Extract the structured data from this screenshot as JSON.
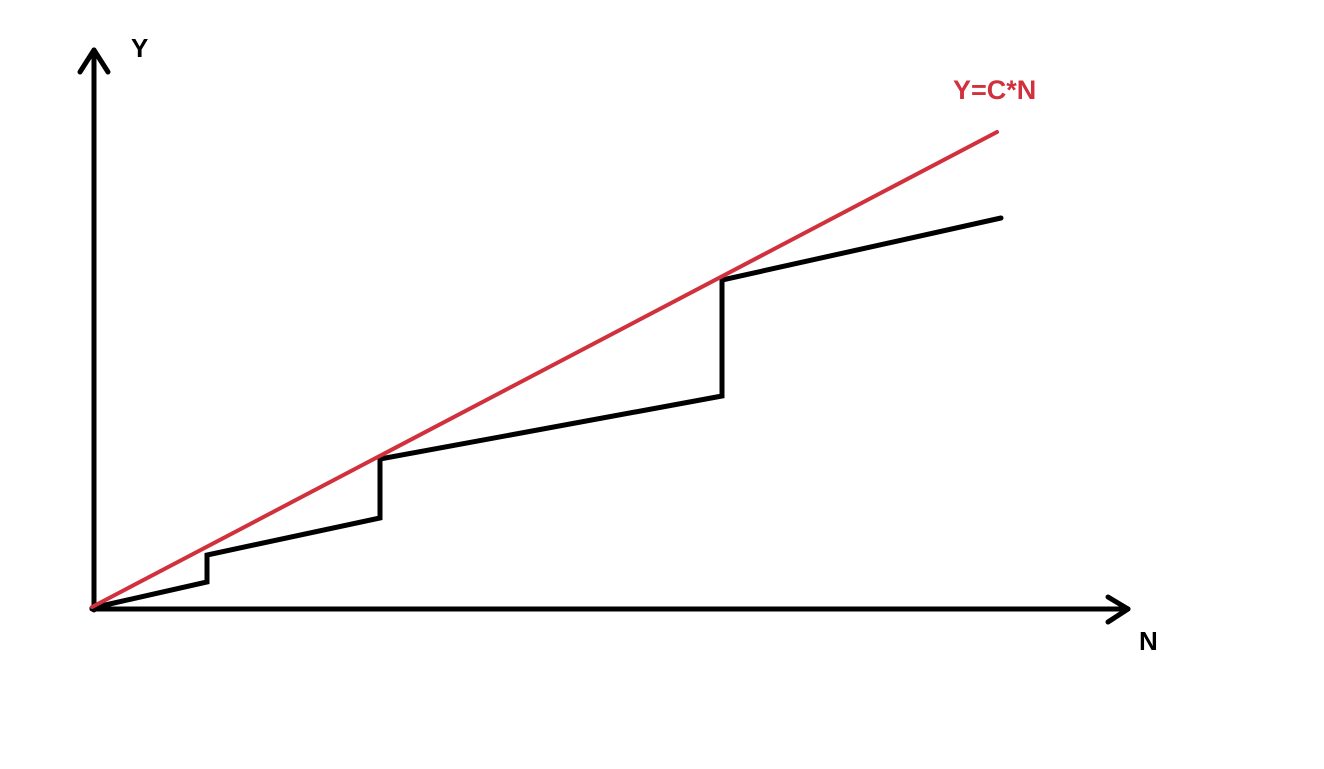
{
  "diagram": {
    "y_axis_label": "Y",
    "x_axis_label": "N",
    "bound_label": "Y=C*N",
    "colors": {
      "axes": "#000000",
      "step_curve": "#000000",
      "bound_line": "#d0313d"
    }
  }
}
